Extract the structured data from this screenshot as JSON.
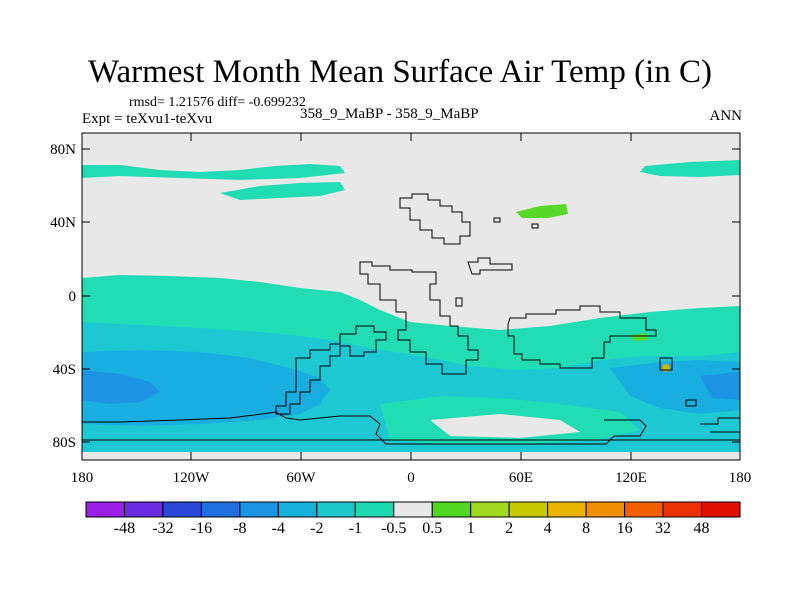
{
  "title": "Warmest Month Mean Surface Air Temp (in C)",
  "stats": "rmsd= 1.21576  diff= -0.699232",
  "experiment": "Expt = teXvu1-teXvu",
  "case": "358_9_MaBP - 358_9_MaBP",
  "season": "ANN",
  "lat_labels": [
    "80N",
    "40N",
    "0",
    "40S",
    "80S"
  ],
  "lon_labels": [
    "180",
    "120W",
    "60W",
    "0",
    "60E",
    "120E",
    "180"
  ],
  "colorbar": {
    "labels": [
      "-48",
      "-32",
      "-16",
      "-8",
      "-4",
      "-2",
      "-1",
      "-0.5",
      "0.5",
      "1",
      "2",
      "4",
      "8",
      "16",
      "32",
      "48"
    ],
    "colors": [
      "#9a20e8",
      "#6a2ae0",
      "#2a48d8",
      "#1f6fe0",
      "#1d93e4",
      "#16b0dc",
      "#1ec8c8",
      "#1ed8b0",
      "#e8e8e8",
      "#50d820",
      "#a0d820",
      "#c8c800",
      "#e8b400",
      "#f09000",
      "#f06000",
      "#e83000",
      "#e01000"
    ]
  },
  "field_colors": {
    "background": "#e8e8e8",
    "near_zero_neg": "#22dcb4",
    "minus_1_to_2": "#1ec8d2",
    "minus_2_to_4": "#18aee0",
    "minus_4_to_8": "#1d93e4",
    "positive": "#58d828",
    "positive_2": "#a8d020",
    "positive_4": "#e8a000"
  }
}
